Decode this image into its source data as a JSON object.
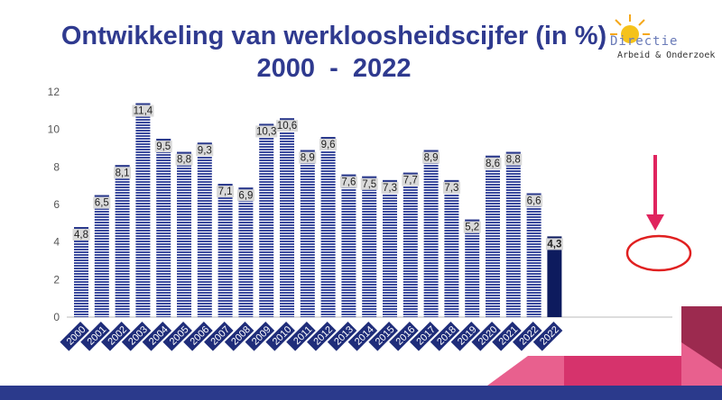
{
  "chart_data": {
    "type": "bar",
    "title": "Ontwikkeling van werkloosheidscijfer (in %)",
    "subtitle": "2000  -  2022",
    "xlabel": "",
    "ylabel": "",
    "ylim": [
      0,
      12
    ],
    "yticks": [
      "0",
      "2",
      "4",
      "6",
      "8",
      "10",
      "12"
    ],
    "categories": [
      "2000",
      "2001",
      "2002",
      "2003",
      "2004",
      "2005",
      "2006",
      "2007",
      "2008",
      "2009",
      "2010",
      "2011",
      "2012",
      "2013",
      "2014",
      "2015",
      "2016",
      "2017",
      "2018",
      "2019",
      "2020",
      "2021",
      "2022",
      "2022"
    ],
    "values": [
      4.8,
      6.5,
      8.1,
      11.4,
      9.5,
      8.8,
      9.3,
      7.1,
      6.9,
      10.3,
      10.6,
      8.9,
      9.6,
      7.6,
      7.5,
      7.3,
      7.7,
      8.9,
      7.3,
      5.2,
      8.6,
      8.8,
      6.6,
      4.3
    ],
    "value_labels": [
      "4,8",
      "6,5",
      "8,1",
      "11,4",
      "9,5",
      "8,8",
      "9,3",
      "7,1",
      "6,9",
      "10,3",
      "10,6",
      "8,9",
      "9,6",
      "7,6",
      "7,5",
      "7,3",
      "7,7",
      "8,9",
      "7,3",
      "5,2",
      "8,6",
      "8,8",
      "6,6",
      "4,3"
    ],
    "highlight_index": 23,
    "grid": false,
    "colors": {
      "bar": "#3d4c9e",
      "bar_stripe": "#ffffff",
      "highlight_bar": "#0d1b5e",
      "arrow": "#e0245e",
      "circle": "#e02020",
      "title": "#2f3a8f"
    }
  },
  "logo": {
    "word": "Directie",
    "subtitle": "Arbeid & Onderzoek"
  }
}
